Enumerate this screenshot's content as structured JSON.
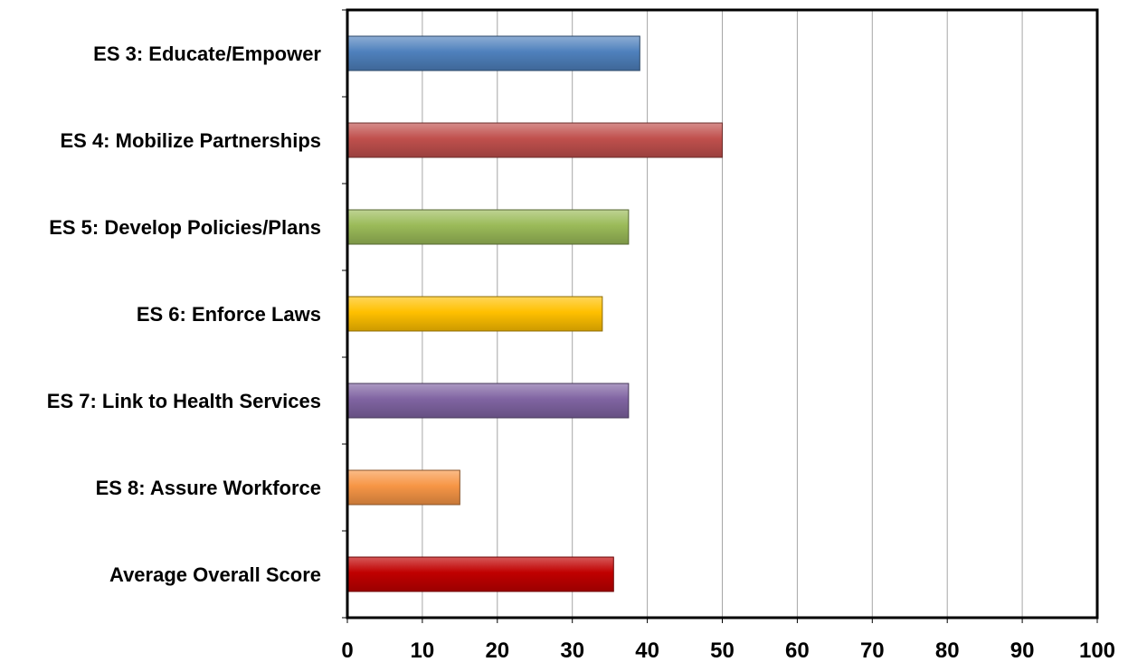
{
  "chart_data": {
    "type": "bar",
    "orientation": "horizontal",
    "categories": [
      "ES 3:  Educate/Empower",
      "ES 4:  Mobilize Partnerships",
      "ES 5:  Develop Policies/Plans",
      "ES 6:  Enforce Laws",
      "ES 7:  Link to Health Services",
      "ES 8:  Assure Workforce",
      "Average Overall Score"
    ],
    "values": [
      39,
      50,
      37.5,
      34,
      37.5,
      15,
      35.5
    ],
    "colors": [
      "#4f81bd",
      "#c0504d",
      "#9bbb59",
      "#ffc000",
      "#8064a2",
      "#f79646",
      "#c00000"
    ],
    "xlim": [
      0,
      100
    ],
    "xticks": [
      "0",
      "10",
      "20",
      "30",
      "40",
      "50",
      "60",
      "70",
      "80",
      "90",
      "100"
    ],
    "grid": "vertical",
    "title": "",
    "xlabel": "",
    "ylabel": ""
  }
}
